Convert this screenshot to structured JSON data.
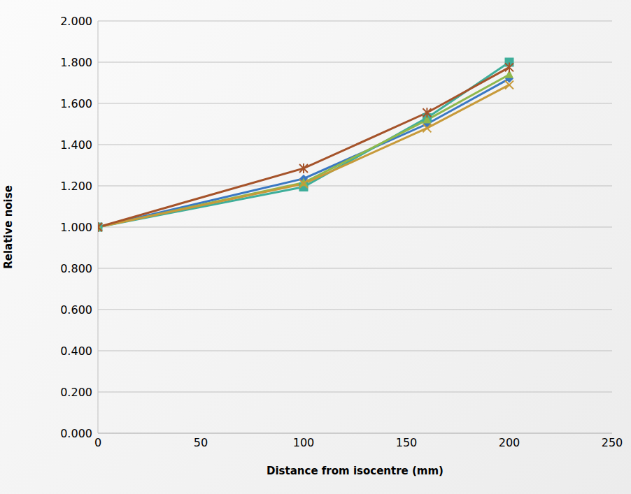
{
  "chart_data": {
    "type": "line",
    "x_label": "Distance from isocentre (mm)",
    "y_label": "Relative noise",
    "x": [
      0,
      100,
      160,
      200
    ],
    "series": [
      {
        "color": "#3a78c3",
        "marker": "diamond",
        "values": [
          1.0,
          1.235,
          1.5,
          1.72
        ]
      },
      {
        "color": "#3fae9a",
        "marker": "square",
        "values": [
          1.0,
          1.195,
          1.53,
          1.8
        ]
      },
      {
        "color": "#8fb84c",
        "marker": "triangle",
        "values": [
          1.0,
          1.215,
          1.52,
          1.74
        ]
      },
      {
        "color": "#c79a3a",
        "marker": "x",
        "values": [
          1.0,
          1.21,
          1.48,
          1.69
        ]
      },
      {
        "color": "#a5532a",
        "marker": "star",
        "values": [
          1.0,
          1.285,
          1.555,
          1.775
        ]
      }
    ],
    "xlim": [
      0,
      250
    ],
    "xticks": [
      0,
      50,
      100,
      150,
      200,
      250
    ],
    "ylim": [
      0,
      2
    ],
    "yticks": [
      {
        "value": 0,
        "label": "0.000"
      },
      {
        "value": 0.2,
        "label": "0.200"
      },
      {
        "value": 0.4,
        "label": "0.400"
      },
      {
        "value": 0.6,
        "label": "0.600"
      },
      {
        "value": 0.8,
        "label": "0.800"
      },
      {
        "value": 1,
        "label": "1.000"
      },
      {
        "value": 1.2,
        "label": "1.200"
      },
      {
        "value": 1.4,
        "label": "1.400"
      },
      {
        "value": 1.6,
        "label": "1.600"
      },
      {
        "value": 1.8,
        "label": "1.800"
      },
      {
        "value": 2,
        "label": "2.000"
      }
    ],
    "grid": true
  }
}
